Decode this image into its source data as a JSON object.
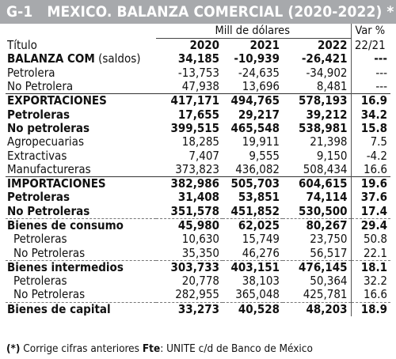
{
  "header": {
    "code": "G-1",
    "title": "MEXICO. BALANZA COMERCIAL (2020-2022) *"
  },
  "table": {
    "unit_label": "Mill de dólares",
    "var_label": "Var %",
    "col_title": "Título",
    "years": [
      "2020",
      "2021",
      "2022"
    ],
    "var_period": "22/21",
    "rows": [
      {
        "label": "BALANZA COM",
        "label_extra": " (saldos)",
        "v1": "34,185",
        "v2": "-10,939",
        "v3": "-26,421",
        "var": "---",
        "style": "bold",
        "sep": "none"
      },
      {
        "label": "Petrolera",
        "label_extra": "",
        "v1": "-13,753",
        "v2": "-24,635",
        "v3": "-34,902",
        "var": "---",
        "style": "normal",
        "sep": "none"
      },
      {
        "label": "No Petrolera",
        "label_extra": "",
        "v1": "47,938",
        "v2": "13,696",
        "v3": "8,481",
        "var": "---",
        "style": "normal",
        "sep": "none"
      },
      {
        "label": "EXPORTACIONES",
        "label_extra": "",
        "v1": "417,171",
        "v2": "494,765",
        "v3": "578,193",
        "var": "16.9",
        "style": "bold",
        "sep": "solid"
      },
      {
        "label": "Petroleras",
        "label_extra": "",
        "v1": "17,655",
        "v2": "29,217",
        "v3": "39,212",
        "var": "34.2",
        "style": "bold",
        "sep": "none"
      },
      {
        "label": "No petroleras",
        "label_extra": "",
        "v1": "399,515",
        "v2": "465,548",
        "v3": "538,981",
        "var": "15.8",
        "style": "bold",
        "sep": "none"
      },
      {
        "label": "Agropecuarias",
        "label_extra": "",
        "v1": "18,285",
        "v2": "19,911",
        "v3": "21,398",
        "var": "7.5",
        "style": "normal",
        "sep": "none"
      },
      {
        "label": "Extractivas",
        "label_extra": "",
        "v1": "7,407",
        "v2": "9,555",
        "v3": "9,150",
        "var": "-4.2",
        "style": "normal",
        "sep": "none"
      },
      {
        "label": "Manufactureras",
        "label_extra": "",
        "v1": "373,823",
        "v2": "436,082",
        "v3": "508,434",
        "var": "16.6",
        "style": "normal",
        "sep": "none"
      },
      {
        "label": "IMPORTACIONES",
        "label_extra": "",
        "v1": "382,986",
        "v2": "505,703",
        "v3": "604,615",
        "var": "19.6",
        "style": "bold",
        "sep": "solid"
      },
      {
        "label": "Petroleras",
        "label_extra": "",
        "v1": "31,408",
        "v2": "53,851",
        "v3": "74,114",
        "var": "37.6",
        "style": "bold",
        "sep": "none"
      },
      {
        "label": "No Petroleras",
        "label_extra": "",
        "v1": "351,578",
        "v2": "451,852",
        "v3": "530,500",
        "var": "17.4",
        "style": "bold",
        "sep": "none"
      },
      {
        "label": "Bienes de consumo",
        "label_extra": "",
        "v1": "45,980",
        "v2": "62,025",
        "v3": "80,267",
        "var": "29.4",
        "style": "bold",
        "sep": "dashed"
      },
      {
        "label": "Petroleras",
        "label_extra": "",
        "v1": "10,630",
        "v2": "15,749",
        "v3": "23,750",
        "var": "50.8",
        "style": "indent",
        "sep": "none"
      },
      {
        "label": "No Petroleras",
        "label_extra": "",
        "v1": "35,350",
        "v2": "46,276",
        "v3": "56,517",
        "var": "22.1",
        "style": "indent",
        "sep": "none"
      },
      {
        "label": "Bienes intermedios",
        "label_extra": "",
        "v1": "303,733",
        "v2": "403,151",
        "v3": "476,145",
        "var": "18.1",
        "style": "bold",
        "sep": "dashed"
      },
      {
        "label": "Petroleras",
        "label_extra": "",
        "v1": "20,778",
        "v2": "38,103",
        "v3": "50,364",
        "var": "32.2",
        "style": "indent",
        "sep": "none"
      },
      {
        "label": "No Petroleras",
        "label_extra": "",
        "v1": "282,955",
        "v2": "365,048",
        "v3": "425,781",
        "var": "16.6",
        "style": "indent",
        "sep": "none"
      },
      {
        "label": "Bienes de capital",
        "label_extra": "",
        "v1": "33,273",
        "v2": "40,528",
        "v3": "48,203",
        "var": "18.9",
        "style": "bold",
        "sep": "dashed"
      }
    ]
  },
  "footer": {
    "note_mark": "(*)",
    "note_text": " Corrige cifras anteriores ",
    "source_label": "Fte",
    "source_text": ": UNITE c/d de Banco de México"
  }
}
